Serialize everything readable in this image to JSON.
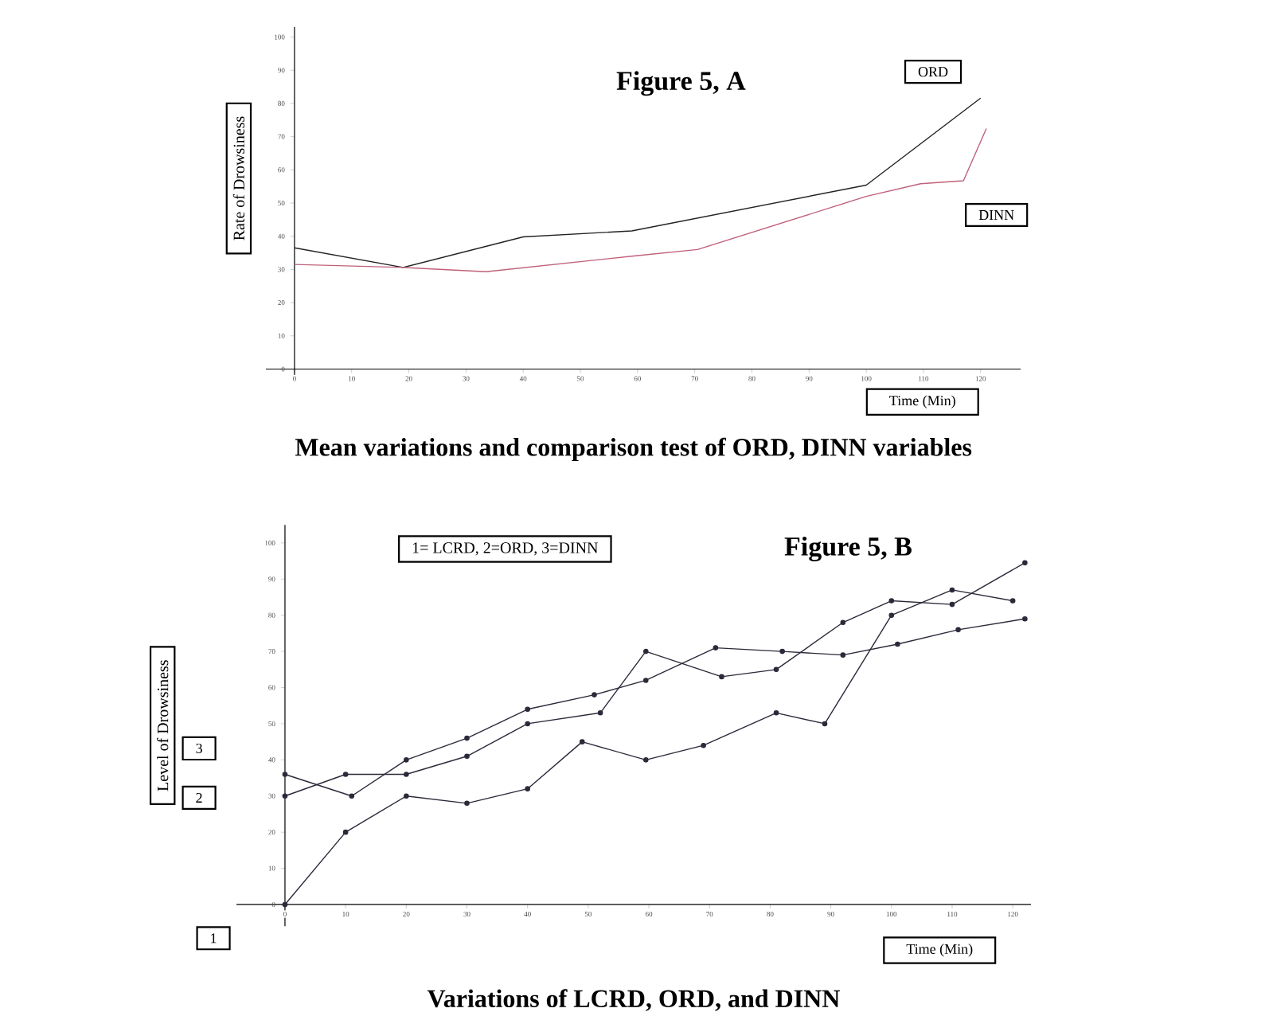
{
  "chart_data": [
    {
      "type": "line",
      "title": "Figure 5, A",
      "xlabel": "Time (Min)",
      "ylabel": "Rate of Drowsiness",
      "xlim": [
        -5,
        127
      ],
      "ylim": [
        -3,
        103
      ],
      "xticks": [
        0,
        10,
        20,
        30,
        40,
        50,
        60,
        70,
        80,
        90,
        100,
        110,
        120
      ],
      "yticks": [
        0,
        10,
        20,
        30,
        40,
        50,
        60,
        70,
        80,
        90,
        100
      ],
      "series": [
        {
          "name": "ORD",
          "color": "#222222",
          "x": [
            0,
            19,
            40,
            59,
            100,
            120
          ],
          "values": [
            36.5,
            30.6,
            39.8,
            41.6,
            55.4,
            81.6
          ]
        },
        {
          "name": "DINN",
          "color": "#c0607a",
          "x": [
            0,
            19,
            33.5,
            59,
            70.5,
            100,
            109.5,
            117,
            121
          ],
          "values": [
            31.5,
            30.6,
            29.3,
            34,
            36,
            52,
            55.8,
            56.7,
            72.4
          ]
        }
      ],
      "annotations": [
        "Mean variations and comparison test of ORD, DINN variables"
      ]
    },
    {
      "type": "line",
      "title": "Figure 5, B",
      "xlabel": "Time (Min)",
      "ylabel": "Level of Drowsiness",
      "xlim": [
        -8,
        123
      ],
      "ylim": [
        -6,
        105
      ],
      "xticks": [
        0,
        10,
        20,
        30,
        40,
        50,
        60,
        70,
        80,
        90,
        100,
        110,
        120
      ],
      "yticks": [
        0,
        10,
        20,
        30,
        40,
        50,
        60,
        70,
        80,
        90,
        100
      ],
      "marker": "circle",
      "series": [
        {
          "color": "#2a2a3a",
          "x": [
            0,
            10,
            20,
            30,
            40,
            49,
            59.5,
            69,
            81,
            89,
            100,
            110,
            120
          ],
          "values": [
            0,
            20,
            30,
            28,
            32,
            45,
            40,
            44,
            53,
            50,
            80,
            87,
            84
          ]
        },
        {
          "color": "#2a2a3a",
          "x": [
            0,
            10,
            20,
            30,
            40,
            52,
            59.5,
            72,
            81,
            92,
            100,
            110,
            122
          ],
          "values": [
            30,
            36,
            36,
            41,
            50,
            53,
            70,
            63,
            65,
            78,
            84,
            83,
            94.5
          ]
        },
        {
          "color": "#2a2a3a",
          "x": [
            0,
            11,
            20,
            30,
            40,
            51,
            59.5,
            71,
            82,
            92,
            101,
            111,
            122
          ],
          "values": [
            36,
            30,
            40,
            46,
            54,
            58,
            62,
            71,
            70,
            69,
            72,
            76,
            79
          ]
        }
      ],
      "annotations": [
        "1= LCRD, 2=ORD, 3=DINN",
        "Variations of LCRD, ORD, and DINN",
        "1",
        "2",
        "3"
      ]
    }
  ]
}
